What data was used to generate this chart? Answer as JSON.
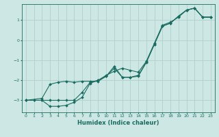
{
  "xlabel": "Humidex (Indice chaleur)",
  "bg_color": "#cde8e4",
  "grid_color": "#b0d0cc",
  "line_color": "#1a6b60",
  "xlim": [
    -0.5,
    23.5
  ],
  "ylim": [
    -3.6,
    1.8
  ],
  "xticks": [
    0,
    1,
    2,
    3,
    4,
    5,
    6,
    7,
    8,
    9,
    10,
    11,
    12,
    13,
    14,
    15,
    16,
    17,
    18,
    19,
    20,
    21,
    22,
    23
  ],
  "yticks": [
    -3,
    -2,
    -1,
    0,
    1
  ],
  "line1_x": [
    0,
    1,
    2,
    3,
    4,
    5,
    6,
    7,
    8,
    9,
    10,
    11,
    12,
    13,
    14,
    15,
    16,
    17,
    18,
    19,
    20,
    21,
    22,
    23
  ],
  "line1_y": [
    -3.0,
    -3.0,
    -3.0,
    -3.0,
    -3.0,
    -3.0,
    -3.0,
    -2.6,
    -2.1,
    -2.0,
    -1.75,
    -1.55,
    -1.4,
    -1.5,
    -1.6,
    -1.05,
    -0.15,
    0.75,
    0.9,
    1.15,
    1.5,
    1.6,
    1.15,
    1.15
  ],
  "line2_x": [
    0,
    2,
    3,
    4,
    5,
    6,
    7,
    8,
    9,
    10,
    11,
    12,
    13,
    14,
    15,
    16,
    17,
    18,
    19,
    20,
    21,
    22,
    23
  ],
  "line2_y": [
    -3.0,
    -2.9,
    -2.2,
    -2.1,
    -2.05,
    -2.1,
    -2.05,
    -2.05,
    -2.05,
    -1.8,
    -1.3,
    -1.85,
    -1.85,
    -1.8,
    -1.1,
    -0.2,
    0.7,
    0.85,
    1.2,
    1.5,
    1.6,
    1.15,
    1.15
  ],
  "line3_x": [
    0,
    1,
    2,
    3,
    4,
    5,
    6,
    7,
    8,
    9,
    10,
    11,
    12,
    13,
    14,
    15,
    16,
    17,
    18,
    19,
    20,
    21,
    22,
    23
  ],
  "line3_y": [
    -3.0,
    -3.0,
    -3.0,
    -3.3,
    -3.3,
    -3.25,
    -3.1,
    -2.85,
    -2.15,
    -2.0,
    -1.8,
    -1.4,
    -1.85,
    -1.85,
    -1.75,
    -1.1,
    -0.2,
    0.7,
    0.85,
    1.2,
    1.5,
    1.6,
    1.15,
    1.15
  ]
}
